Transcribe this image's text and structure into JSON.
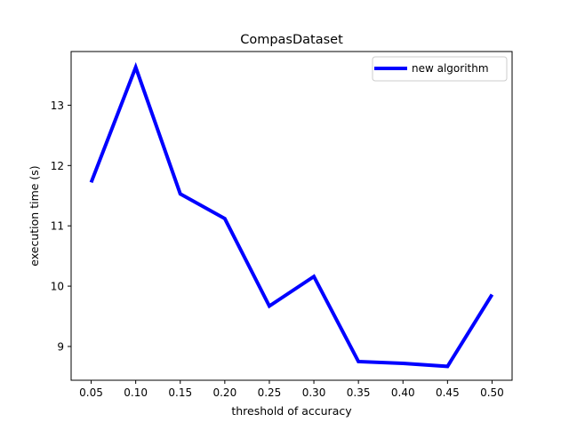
{
  "chart_data": {
    "type": "line",
    "title": "CompasDataset",
    "xlabel": "threshold of accuracy",
    "ylabel": "execution time (s)",
    "x": [
      0.05,
      0.1,
      0.15,
      0.2,
      0.25,
      0.3,
      0.35,
      0.4,
      0.45,
      0.5
    ],
    "x_tick_labels": [
      "0.05",
      "0.10",
      "0.15",
      "0.20",
      "0.25",
      "0.30",
      "0.35",
      "0.40",
      "0.45",
      "0.50"
    ],
    "y_ticks": [
      9,
      10,
      11,
      12,
      13
    ],
    "y_tick_labels": [
      "9",
      "10",
      "11",
      "12",
      "13"
    ],
    "xlim": [
      0.0275,
      0.5225
    ],
    "ylim": [
      8.44,
      13.89
    ],
    "series": [
      {
        "name": "new algorithm",
        "color": "#0000ff",
        "values": [
          11.72,
          13.63,
          11.53,
          11.12,
          9.67,
          10.16,
          8.75,
          8.72,
          8.67,
          9.86
        ]
      }
    ],
    "legend_position": "top-right",
    "grid": false
  }
}
